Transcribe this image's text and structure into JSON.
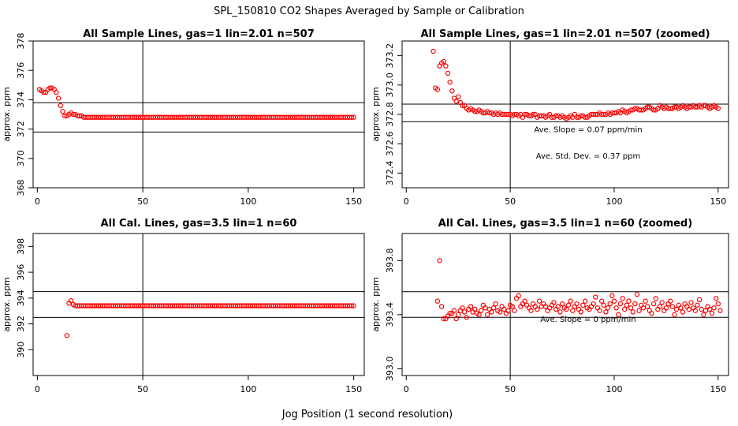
{
  "figure": {
    "title": "SPL_150810  CO2 Shapes Averaged by Sample or Calibration",
    "xlabel": "Jog Position (1 second resolution)"
  },
  "colors": {
    "points": "#ff0000",
    "axes": "#000000",
    "refline": "#000000"
  },
  "chart_data": [
    {
      "type": "scatter",
      "title": "All Sample Lines, gas=1 lin=2.01 n=507",
      "xlabel": "",
      "ylabel": "approx. ppm",
      "xlim": [
        -2,
        155
      ],
      "ylim": [
        368,
        378
      ],
      "xticks": [
        0,
        50,
        100,
        150
      ],
      "yticks": [
        368,
        370,
        372,
        374,
        376,
        378
      ],
      "vline": 50,
      "hlines": [
        373.8,
        371.8
      ],
      "annotations": [],
      "series": [
        {
          "name": "averaged shape",
          "x_start": 1,
          "values": [
            374.7,
            374.6,
            374.5,
            374.5,
            374.7,
            374.8,
            374.8,
            374.7,
            374.5,
            374.1,
            373.6,
            373.2,
            372.9,
            372.9,
            373.0,
            373.1,
            373.0,
            373.0,
            372.9,
            372.9,
            372.9,
            372.8,
            372.8,
            372.8,
            372.8,
            372.8,
            372.8,
            372.8,
            372.8,
            372.8,
            372.8,
            372.8,
            372.8,
            372.8,
            372.8,
            372.8,
            372.8,
            372.8,
            372.8,
            372.8,
            372.8,
            372.8,
            372.8,
            372.8,
            372.8,
            372.8,
            372.8,
            372.8,
            372.8,
            372.8,
            372.8,
            372.8,
            372.8,
            372.8,
            372.8,
            372.8,
            372.8,
            372.8,
            372.8,
            372.8,
            372.8,
            372.8,
            372.8,
            372.8,
            372.8,
            372.8,
            372.8,
            372.8,
            372.8,
            372.8,
            372.8,
            372.8,
            372.8,
            372.8,
            372.8,
            372.8,
            372.8,
            372.8,
            372.8,
            372.8,
            372.8,
            372.8,
            372.8,
            372.8,
            372.8,
            372.8,
            372.8,
            372.8,
            372.8,
            372.8,
            372.8,
            372.8,
            372.8,
            372.8,
            372.8,
            372.8,
            372.8,
            372.8,
            372.8,
            372.8,
            372.8,
            372.8,
            372.8,
            372.8,
            372.8,
            372.8,
            372.8,
            372.8,
            372.8,
            372.8,
            372.8,
            372.8,
            372.8,
            372.8,
            372.8,
            372.8,
            372.8,
            372.8,
            372.8,
            372.8,
            372.8,
            372.8,
            372.8,
            372.8,
            372.8,
            372.8,
            372.8,
            372.8,
            372.8,
            372.8,
            372.8,
            372.8,
            372.8,
            372.8,
            372.8,
            372.8,
            372.8,
            372.8,
            372.8,
            372.8,
            372.8,
            372.8,
            372.8,
            372.8,
            372.8,
            372.8,
            372.8,
            372.8,
            372.8,
            372.8
          ]
        }
      ]
    },
    {
      "type": "scatter",
      "title": "All Sample Lines, gas=1 lin=2.01 n=507 (zoomed)",
      "xlabel": "",
      "ylabel": "approx. ppm",
      "xlim": [
        -2,
        155
      ],
      "ylim": [
        372.3,
        373.3
      ],
      "xticks": [
        0,
        50,
        100,
        150
      ],
      "yticks": [
        372.4,
        372.6,
        372.8,
        373.0,
        373.2
      ],
      "ytick_labels": [
        "372.4",
        "372.6",
        "372.8",
        "373.0",
        "373.2"
      ],
      "vline": 50,
      "hlines": [
        372.87,
        372.75
      ],
      "annotations": [
        "Ave. Slope =  0.07  ppm/min",
        "Ave. Std. Dev. =  0.37  ppm"
      ],
      "series": [
        {
          "name": "averaged shape (zoomed)",
          "x_start": 13,
          "values": [
            373.23,
            372.98,
            372.97,
            373.13,
            373.15,
            373.16,
            373.13,
            373.08,
            373.02,
            372.96,
            372.91,
            372.89,
            372.92,
            372.88,
            372.86,
            372.86,
            372.84,
            372.83,
            372.84,
            372.83,
            372.82,
            372.82,
            372.83,
            372.82,
            372.81,
            372.81,
            372.82,
            372.81,
            372.81,
            372.8,
            372.81,
            372.8,
            372.81,
            372.8,
            372.8,
            372.8,
            372.8,
            372.8,
            372.79,
            372.8,
            372.8,
            372.79,
            372.8,
            372.78,
            372.8,
            372.8,
            372.79,
            372.79,
            372.8,
            372.8,
            372.78,
            372.79,
            372.79,
            372.79,
            372.78,
            372.79,
            372.8,
            372.78,
            372.78,
            372.79,
            372.79,
            372.78,
            372.79,
            372.78,
            372.77,
            372.78,
            372.79,
            372.78,
            372.8,
            372.78,
            372.78,
            372.79,
            372.79,
            372.78,
            372.78,
            372.79,
            372.8,
            372.8,
            372.8,
            372.8,
            372.81,
            372.8,
            372.8,
            372.8,
            372.81,
            372.8,
            372.81,
            372.81,
            372.81,
            372.82,
            372.81,
            372.83,
            372.82,
            372.81,
            372.82,
            372.83,
            372.83,
            372.84,
            372.84,
            372.83,
            372.83,
            372.83,
            372.84,
            372.85,
            372.85,
            372.84,
            372.83,
            372.83,
            372.84,
            372.86,
            372.85,
            372.84,
            372.85,
            372.84,
            372.84,
            372.84,
            372.85,
            372.85,
            372.84,
            372.85,
            372.86,
            372.85,
            372.84,
            372.85,
            372.85,
            372.86,
            372.85,
            372.85,
            372.86,
            372.85,
            372.86,
            372.86,
            372.85,
            372.84,
            372.85,
            372.86,
            372.85,
            372.84
          ]
        }
      ]
    },
    {
      "type": "scatter",
      "title": "All Cal. Lines, gas=3.5 lin=1 n=60",
      "xlabel": "",
      "ylabel": "approx. ppm",
      "xlim": [
        -2,
        155
      ],
      "ylim": [
        388,
        399
      ],
      "xticks": [
        0,
        50,
        100,
        150
      ],
      "yticks": [
        390,
        392,
        394,
        396,
        398
      ],
      "vline": 50,
      "hlines": [
        394.5,
        392.5
      ],
      "annotations": [],
      "series": [
        {
          "name": "averaged shape",
          "x_start": 14,
          "values": [
            391.1,
            393.6,
            393.8,
            393.5,
            393.4,
            393.4,
            393.4,
            393.4,
            393.4,
            393.4,
            393.4,
            393.4,
            393.4,
            393.4,
            393.4,
            393.4,
            393.4,
            393.4,
            393.4,
            393.4,
            393.4,
            393.4,
            393.4,
            393.4,
            393.4,
            393.4,
            393.4,
            393.4,
            393.4,
            393.4,
            393.4,
            393.4,
            393.4,
            393.4,
            393.4,
            393.4,
            393.4,
            393.4,
            393.4,
            393.4,
            393.4,
            393.4,
            393.4,
            393.4,
            393.4,
            393.4,
            393.4,
            393.4,
            393.4,
            393.4,
            393.4,
            393.4,
            393.4,
            393.4,
            393.4,
            393.4,
            393.4,
            393.4,
            393.4,
            393.4,
            393.4,
            393.4,
            393.4,
            393.4,
            393.4,
            393.4,
            393.4,
            393.4,
            393.4,
            393.4,
            393.4,
            393.4,
            393.4,
            393.4,
            393.4,
            393.4,
            393.4,
            393.4,
            393.4,
            393.4,
            393.4,
            393.4,
            393.4,
            393.4,
            393.4,
            393.4,
            393.4,
            393.4,
            393.4,
            393.4,
            393.4,
            393.4,
            393.4,
            393.4,
            393.4,
            393.4,
            393.4,
            393.4,
            393.4,
            393.4,
            393.4,
            393.4,
            393.4,
            393.4,
            393.4,
            393.4,
            393.4,
            393.4,
            393.4,
            393.4,
            393.4,
            393.4,
            393.4,
            393.4,
            393.4,
            393.4,
            393.4,
            393.4,
            393.4,
            393.4,
            393.4,
            393.4,
            393.4,
            393.4,
            393.4,
            393.4,
            393.4,
            393.4,
            393.4,
            393.4,
            393.4,
            393.4,
            393.4,
            393.4,
            393.4,
            393.4,
            393.4
          ]
        }
      ]
    },
    {
      "type": "scatter",
      "title": "All Cal. Lines, gas=3.5 lin=1 n=60 (zoomed)",
      "xlabel": "",
      "ylabel": "approx. ppm",
      "xlim": [
        -2,
        155
      ],
      "ylim": [
        392.95,
        394.0
      ],
      "xticks": [
        0,
        50,
        100,
        150
      ],
      "yticks": [
        393.0,
        393.4,
        393.8
      ],
      "ytick_labels": [
        "393.0",
        "393.4",
        "393.8"
      ],
      "vline": 50,
      "hlines": [
        393.57,
        393.38
      ],
      "annotations": [
        "Ave. Slope =  0  ppm/min"
      ],
      "series": [
        {
          "name": "averaged shape (zoomed)",
          "x_start": 15,
          "values": [
            393.5,
            393.8,
            393.46,
            393.37,
            393.37,
            393.39,
            393.41,
            393.41,
            393.43,
            393.37,
            393.4,
            393.43,
            393.45,
            393.42,
            393.38,
            393.44,
            393.46,
            393.42,
            393.44,
            393.41,
            393.4,
            393.43,
            393.47,
            393.45,
            393.4,
            393.44,
            393.42,
            393.45,
            393.48,
            393.43,
            393.42,
            393.46,
            393.44,
            393.41,
            393.43,
            393.47,
            393.46,
            393.43,
            393.52,
            393.54,
            393.46,
            393.48,
            393.5,
            393.47,
            393.45,
            393.43,
            393.48,
            393.46,
            393.44,
            393.5,
            393.46,
            393.48,
            393.46,
            393.43,
            393.45,
            393.47,
            393.49,
            393.44,
            393.46,
            393.42,
            393.48,
            393.45,
            393.44,
            393.47,
            393.5,
            393.43,
            393.46,
            393.48,
            393.44,
            393.42,
            393.47,
            393.5,
            393.45,
            393.44,
            393.46,
            393.48,
            393.53,
            393.45,
            393.43,
            393.5,
            393.47,
            393.42,
            393.45,
            393.48,
            393.54,
            393.5,
            393.45,
            393.4,
            393.48,
            393.52,
            393.44,
            393.47,
            393.5,
            393.45,
            393.42,
            393.48,
            393.55,
            393.43,
            393.47,
            393.45,
            393.5,
            393.46,
            393.43,
            393.41,
            393.48,
            393.52,
            393.44,
            393.46,
            393.49,
            393.43,
            393.45,
            393.48,
            393.5,
            393.46,
            393.4,
            393.44,
            393.47,
            393.45,
            393.42,
            393.48,
            393.46,
            393.44,
            393.49,
            393.45,
            393.43,
            393.47,
            393.51,
            393.44,
            393.4,
            393.43,
            393.46,
            393.44,
            393.41,
            393.45,
            393.52,
            393.48,
            393.43
          ]
        }
      ]
    }
  ]
}
